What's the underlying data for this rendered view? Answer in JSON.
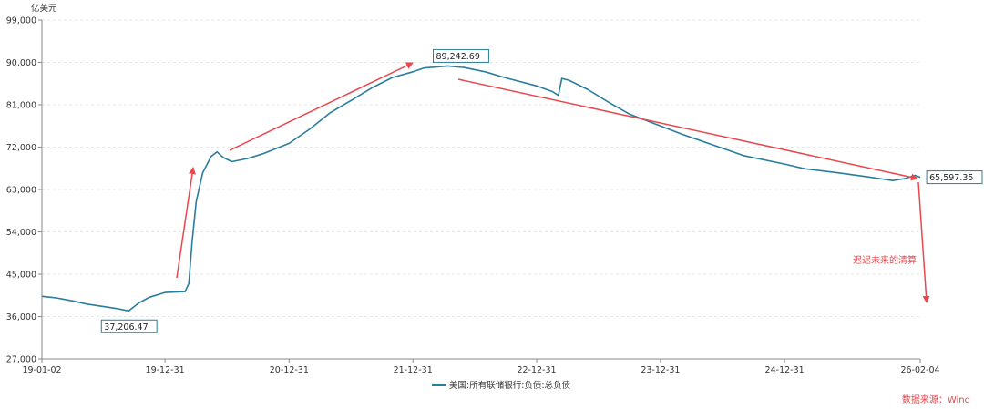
{
  "chart_data": {
    "type": "line",
    "unit_label": "亿美元",
    "ylim": [
      27000,
      99000
    ],
    "y_ticks": [
      27000,
      36000,
      45000,
      54000,
      63000,
      72000,
      81000,
      90000,
      99000
    ],
    "y_tick_labels": [
      "27,000",
      "36,000",
      "45,000",
      "54,000",
      "63,000",
      "72,000",
      "81,000",
      "90,000",
      "99,000"
    ],
    "x_tick_labels": [
      "19-01-02",
      "19-12-31",
      "20-12-31",
      "21-12-31",
      "22-12-31",
      "23-12-31",
      "24-12-31",
      "26-02-04"
    ],
    "x_range_dates": [
      "2019-01-02",
      "2026-02-04"
    ],
    "grid": true,
    "legend_position": "bottom-center",
    "series": [
      {
        "name": "美国:所有联储银行:负债:总负债",
        "color": "#2a7d9c",
        "points": [
          [
            "2019-01-02",
            40300
          ],
          [
            "2019-02-15",
            39950
          ],
          [
            "2019-04-01",
            39350
          ],
          [
            "2019-05-15",
            38650
          ],
          [
            "2019-07-01",
            38150
          ],
          [
            "2019-08-15",
            37650
          ],
          [
            "2019-09-15",
            37206.47
          ],
          [
            "2019-10-15",
            38900
          ],
          [
            "2019-11-15",
            40100
          ],
          [
            "2019-12-31",
            41100
          ],
          [
            "2020-02-01",
            41200
          ],
          [
            "2020-02-28",
            41300
          ],
          [
            "2020-03-10",
            43000
          ],
          [
            "2020-03-20",
            52000
          ],
          [
            "2020-04-01",
            60500
          ],
          [
            "2020-04-20",
            66500
          ],
          [
            "2020-05-15",
            70000
          ],
          [
            "2020-06-01",
            71000
          ],
          [
            "2020-06-20",
            69800
          ],
          [
            "2020-07-15",
            68900
          ],
          [
            "2020-09-01",
            69600
          ],
          [
            "2020-10-15",
            70600
          ],
          [
            "2020-12-31",
            72800
          ],
          [
            "2021-03-01",
            75800
          ],
          [
            "2021-05-01",
            79300
          ],
          [
            "2021-07-01",
            81900
          ],
          [
            "2021-09-01",
            84600
          ],
          [
            "2021-11-01",
            86800
          ],
          [
            "2021-12-31",
            88000
          ],
          [
            "2022-02-01",
            88800
          ],
          [
            "2022-04-13",
            89242.69
          ],
          [
            "2022-06-01",
            88900
          ],
          [
            "2022-08-01",
            88000
          ],
          [
            "2022-10-01",
            86700
          ],
          [
            "2022-12-31",
            85000
          ],
          [
            "2023-02-15",
            83800
          ],
          [
            "2023-03-05",
            83000
          ],
          [
            "2023-03-15",
            86600
          ],
          [
            "2023-04-05",
            86200
          ],
          [
            "2023-06-01",
            84200
          ],
          [
            "2023-08-01",
            81500
          ],
          [
            "2023-10-01",
            79000
          ],
          [
            "2023-12-31",
            76500
          ],
          [
            "2024-03-01",
            74800
          ],
          [
            "2024-06-01",
            72500
          ],
          [
            "2024-09-01",
            70200
          ],
          [
            "2024-12-31",
            68400
          ],
          [
            "2025-03-01",
            67400
          ],
          [
            "2025-06-01",
            66600
          ],
          [
            "2025-09-01",
            65700
          ],
          [
            "2025-11-15",
            64900
          ],
          [
            "2025-12-20",
            65300
          ],
          [
            "2026-01-20",
            66000
          ],
          [
            "2026-02-04",
            65597.35
          ]
        ]
      }
    ],
    "annotations": [
      {
        "date": "2019-09-15",
        "value": 37206.47,
        "label": "37,206.47"
      },
      {
        "date": "2022-04-13",
        "value": 89242.69,
        "label": "89,242.69"
      },
      {
        "date": "2026-02-04",
        "value": 65597.35,
        "label": "65,597.35"
      }
    ],
    "note": "迟迟未来的清算",
    "source": "数据来源：Wind"
  },
  "colors": {
    "series": "#2a7d9c",
    "arrow": "#e8474c",
    "grid": "#e6e6e6",
    "axis": "#8a8a8a"
  }
}
